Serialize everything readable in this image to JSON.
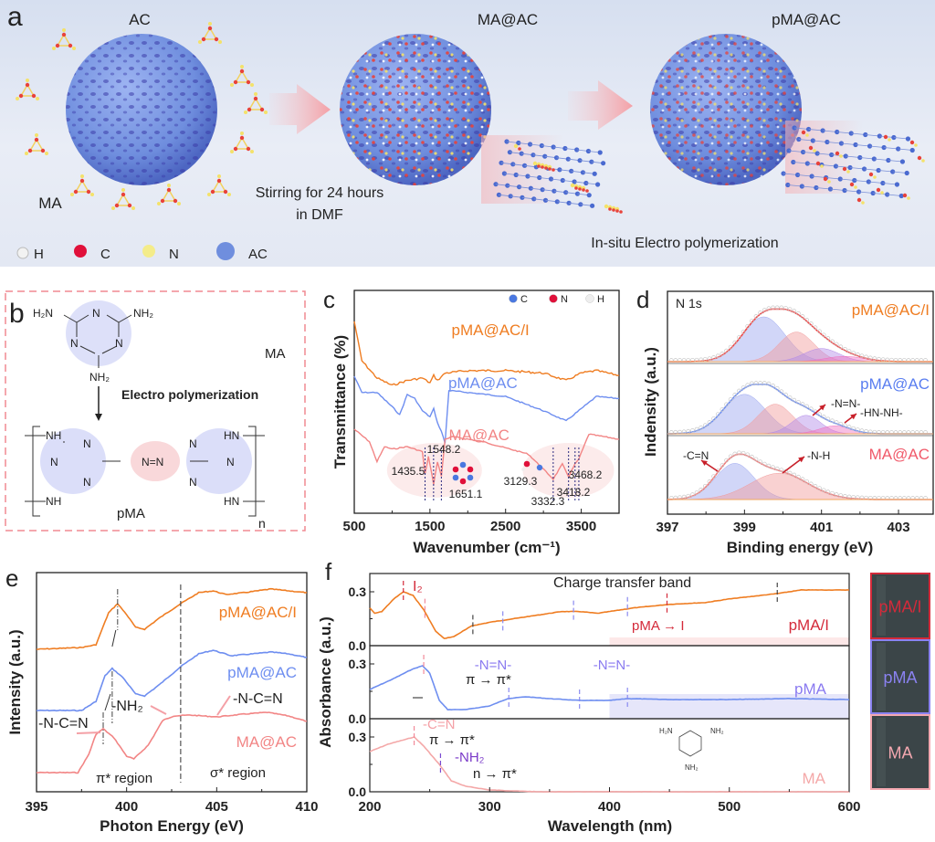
{
  "figure": {
    "panel_labels": [
      "a",
      "b",
      "c",
      "d",
      "e",
      "f"
    ]
  },
  "panel_a": {
    "titles": {
      "ac": "AC",
      "ma_ac": "MA@AC",
      "pma_ac": "pMA@AC",
      "ma": "MA"
    },
    "step1": [
      "Stirring for 24 hours",
      "in DMF"
    ],
    "step2": "In-situ  Electro polymerization",
    "legend": [
      {
        "label": "H",
        "color": "#f2f2f2"
      },
      {
        "label": "C",
        "color": "#e0103a"
      },
      {
        "label": "N",
        "color": "#f4ec8a"
      },
      {
        "label": "AC",
        "color": "#6f8ede"
      }
    ],
    "colors": {
      "sphere": "#6f8ede",
      "pore": "#3f3fb0",
      "arrow": "#f4a3a8"
    }
  },
  "panel_b": {
    "monomer_label": "MA",
    "polymer_label": "pMA",
    "reaction": "Electro polymerization",
    "atoms": {
      "h2n": "H₂N",
      "nh2": "NH₂",
      "n": "N",
      "nh": "NH",
      "hn": "HN",
      "azo": "N=N",
      "subscript_n": "n"
    },
    "border_color": "#f08a92"
  },
  "chart_data": [
    {
      "id": "c",
      "type": "line",
      "title": "",
      "xlabel": "Wavenumber (cm⁻¹)",
      "ylabel": "Transmittance (%)",
      "xlim": [
        500,
        4000
      ],
      "xticks": [
        500,
        1500,
        2500,
        3500
      ],
      "legend_atoms": [
        {
          "label": "C",
          "color": "#4a78e0"
        },
        {
          "label": "N",
          "color": "#e0103a"
        },
        {
          "label": "H",
          "color": "#eeeeee"
        }
      ],
      "series": [
        {
          "name": "pMA@AC/I",
          "color": "#ef7d22",
          "points": [
            [
              500,
              0.86
            ],
            [
              600,
              0.7
            ],
            [
              800,
              0.63
            ],
            [
              1000,
              0.6
            ],
            [
              1200,
              0.62
            ],
            [
              1400,
              0.63
            ],
            [
              1500,
              0.61
            ],
            [
              1550,
              0.64
            ],
            [
              1600,
              0.62
            ],
            [
              1700,
              0.65
            ],
            [
              2000,
              0.66
            ],
            [
              2500,
              0.66
            ],
            [
              3000,
              0.65
            ],
            [
              3300,
              0.62
            ],
            [
              3500,
              0.65
            ],
            [
              3700,
              0.66
            ],
            [
              4000,
              0.64
            ]
          ]
        },
        {
          "name": "pMA@AC",
          "color": "#6e8ef0",
          "points": [
            [
              500,
              0.53
            ],
            [
              600,
              0.45
            ],
            [
              800,
              0.45
            ],
            [
              1000,
              0.38
            ],
            [
              1100,
              0.34
            ],
            [
              1200,
              0.44
            ],
            [
              1300,
              0.42
            ],
            [
              1400,
              0.36
            ],
            [
              1500,
              0.33
            ],
            [
              1550,
              0.37
            ],
            [
              1600,
              0.3
            ],
            [
              1650,
              0.26
            ],
            [
              1700,
              0.2
            ],
            [
              1750,
              0.46
            ],
            [
              2000,
              0.45
            ],
            [
              2500,
              0.43
            ],
            [
              3000,
              0.36
            ],
            [
              3300,
              0.31
            ],
            [
              3500,
              0.37
            ],
            [
              3700,
              0.43
            ],
            [
              4000,
              0.42
            ]
          ]
        },
        {
          "name": "MA@AC",
          "color": "#f28585",
          "points": [
            [
              500,
              0.24
            ],
            [
              700,
              0.19
            ],
            [
              800,
              0.11
            ],
            [
              900,
              0.17
            ],
            [
              1000,
              0.16
            ],
            [
              1200,
              0.17
            ],
            [
              1400,
              0.15
            ],
            [
              1435.5,
              0.06
            ],
            [
              1480,
              0.13
            ],
            [
              1548.2,
              0.02
            ],
            [
              1600,
              0.11
            ],
            [
              1651.1,
              0.05
            ],
            [
              1700,
              0.2
            ],
            [
              1800,
              0.21
            ],
            [
              2200,
              0.19
            ],
            [
              2800,
              0.14
            ],
            [
              3129.3,
              0.04
            ],
            [
              3250,
              0.1
            ],
            [
              3332.3,
              0.05
            ],
            [
              3418.2,
              0.1
            ],
            [
              3468.2,
              0.12
            ],
            [
              3600,
              0.22
            ],
            [
              4000,
              0.2
            ]
          ]
        }
      ],
      "annotations": [
        "1435.5",
        "1548.2",
        "1651.1",
        "3129.3",
        "3332.3",
        "3418.2",
        "3468.2"
      ],
      "peak_positions": [
        1435.5,
        1548.2,
        1651.1,
        3129.3,
        3332.3,
        3418.2,
        3468.2
      ]
    },
    {
      "id": "d",
      "type": "line",
      "title": "N 1s",
      "xlabel": "Binding energy (eV)",
      "ylabel": "Indensity (a.u.)",
      "xlim": [
        397,
        403.9
      ],
      "xticks": [
        397,
        399,
        401,
        403
      ],
      "series": [
        {
          "name": "pMA@AC/I",
          "color": "#ef7d22",
          "envelope_color": "#f04848",
          "components": [
            {
              "center": 399.5,
              "height": 0.68,
              "width": 0.55,
              "color": "#9aa5f0"
            },
            {
              "center": 400.35,
              "height": 0.45,
              "width": 0.45,
              "color": "#f29a9a"
            },
            {
              "center": 401.0,
              "height": 0.2,
              "width": 0.45,
              "color": "#b28ae8"
            },
            {
              "center": 401.6,
              "height": 0.08,
              "width": 0.5,
              "color": "#f070c0"
            }
          ],
          "envelope_peak": 400.0,
          "envelope_height": 0.8
        },
        {
          "name": "pMA@AC",
          "color": "#5a7ef0",
          "envelope_color": "#6e8ef0",
          "components": [
            {
              "center": 399.0,
              "height": 0.6,
              "width": 0.55,
              "color": "#9aa5f0"
            },
            {
              "center": 399.8,
              "height": 0.45,
              "width": 0.45,
              "color": "#f29a9a"
            },
            {
              "center": 400.6,
              "height": 0.28,
              "width": 0.38,
              "color": "#b28ae8"
            },
            {
              "center": 401.35,
              "height": 0.12,
              "width": 0.4,
              "color": "#f070c0"
            }
          ],
          "envelope_peak": 399.5,
          "envelope_height": 0.75
        },
        {
          "name": "MA@AC",
          "color": "#f05a6a",
          "envelope_color": "#f07a7a",
          "components": [
            {
              "center": 398.75,
              "height": 0.55,
              "width": 0.5,
              "color": "#9aa5f0"
            },
            {
              "center": 399.9,
              "height": 0.4,
              "width": 0.75,
              "color": "#f29a9a"
            }
          ],
          "envelope_peak": 399.0,
          "envelope_height": 0.72
        }
      ],
      "annotations": [
        "-N=N-",
        "-HN-NH-",
        "-C=N",
        "-N-H"
      ]
    },
    {
      "id": "e",
      "type": "line",
      "title": "",
      "xlabel": "Photon Energy (eV)",
      "ylabel": "Intensity (a.u.)",
      "xlim": [
        395,
        410
      ],
      "xticks": [
        395,
        400,
        405,
        410
      ],
      "series": [
        {
          "name": "pMA@AC/I",
          "color": "#ef7d22",
          "points": [
            [
              395,
              0.0
            ],
            [
              397.5,
              0.02
            ],
            [
              398.3,
              0.05
            ],
            [
              399.0,
              0.4
            ],
            [
              399.5,
              0.5
            ],
            [
              400.0,
              0.38
            ],
            [
              400.5,
              0.24
            ],
            [
              401.0,
              0.22
            ],
            [
              401.8,
              0.34
            ],
            [
              403.0,
              0.5
            ],
            [
              404.0,
              0.62
            ],
            [
              404.8,
              0.64
            ],
            [
              405.5,
              0.6
            ],
            [
              406.5,
              0.62
            ],
            [
              408,
              0.66
            ],
            [
              409,
              0.64
            ],
            [
              410,
              0.62
            ]
          ]
        },
        {
          "name": "pMA@AC",
          "color": "#6e8ef0",
          "points": [
            [
              395,
              0.0
            ],
            [
              397.5,
              0.0
            ],
            [
              398.3,
              0.1
            ],
            [
              398.8,
              0.38
            ],
            [
              399.2,
              0.46
            ],
            [
              399.8,
              0.36
            ],
            [
              400.5,
              0.18
            ],
            [
              401.0,
              0.16
            ],
            [
              401.8,
              0.28
            ],
            [
              403.0,
              0.48
            ],
            [
              404.0,
              0.62
            ],
            [
              404.8,
              0.66
            ],
            [
              405.8,
              0.6
            ],
            [
              407,
              0.62
            ],
            [
              408,
              0.64
            ],
            [
              409,
              0.62
            ],
            [
              410,
              0.58
            ]
          ]
        },
        {
          "name": "MA@AC",
          "color": "#f28585",
          "points": [
            [
              395,
              0.0
            ],
            [
              397.3,
              0.0
            ],
            [
              397.9,
              0.2
            ],
            [
              398.3,
              0.42
            ],
            [
              398.7,
              0.48
            ],
            [
              399.3,
              0.38
            ],
            [
              400.0,
              0.18
            ],
            [
              400.4,
              0.15
            ],
            [
              401.2,
              0.3
            ],
            [
              402.0,
              0.57
            ],
            [
              402.6,
              0.62
            ],
            [
              403.5,
              0.63
            ],
            [
              405,
              0.61
            ],
            [
              406.5,
              0.64
            ],
            [
              407.8,
              0.66
            ],
            [
              409,
              0.62
            ],
            [
              410,
              0.56
            ]
          ]
        }
      ],
      "vlines": [
        403.0
      ],
      "peak_markers": [
        398.7,
        399.2,
        399.5
      ],
      "annotations": [
        "-N-C=N",
        "-NH₂",
        "-N-C=N",
        "π* region",
        "σ* region"
      ]
    },
    {
      "id": "f",
      "type": "line",
      "title": "",
      "xlabel": "Wavelength (nm)",
      "ylabel": "Absorbance (a.u.)",
      "xlim": [
        200,
        600
      ],
      "xticks": [
        200,
        300,
        400,
        500,
        600
      ],
      "ylim": [
        0.0,
        0.38
      ],
      "yticks": [
        0.0,
        0.3
      ],
      "subplots": [
        {
          "name": "pMA/I",
          "color": "#ef7d22",
          "label_color": "#d42a3a",
          "shade_from": 400,
          "shade_color": "#fde8e8",
          "points": [
            [
              200,
              0.21
            ],
            [
              204,
              0.18
            ],
            [
              210,
              0.19
            ],
            [
              220,
              0.26
            ],
            [
              228,
              0.3
            ],
            [
              236,
              0.28
            ],
            [
              245,
              0.2
            ],
            [
              255,
              0.08
            ],
            [
              262,
              0.04
            ],
            [
              270,
              0.05
            ],
            [
              285,
              0.11
            ],
            [
              300,
              0.13
            ],
            [
              330,
              0.16
            ],
            [
              360,
              0.19
            ],
            [
              375,
              0.19
            ],
            [
              390,
              0.18
            ],
            [
              420,
              0.21
            ],
            [
              450,
              0.23
            ],
            [
              480,
              0.24
            ],
            [
              500,
              0.26
            ],
            [
              540,
              0.29
            ],
            [
              560,
              0.31
            ],
            [
              600,
              0.31
            ]
          ],
          "markers": [
            {
              "x": 228,
              "color": "#d42a3a"
            },
            {
              "x": 246,
              "color": "#f28a9a"
            },
            {
              "x": 286,
              "color": "#444444"
            },
            {
              "x": 311,
              "color": "#8a8af0"
            },
            {
              "x": 370,
              "color": "#8a8af0"
            },
            {
              "x": 415,
              "color": "#8a8af0"
            },
            {
              "x": 448,
              "color": "#d42a3a"
            },
            {
              "x": 540,
              "color": "#444444"
            }
          ]
        },
        {
          "name": "pMA",
          "color": "#6e8ef0",
          "label_color": "#8a7af0",
          "shade_from": 400,
          "shade_color": "#e6e6fa",
          "points": [
            [
              200,
              0.16
            ],
            [
              220,
              0.22
            ],
            [
              235,
              0.27
            ],
            [
              244,
              0.29
            ],
            [
              250,
              0.25
            ],
            [
              258,
              0.1
            ],
            [
              265,
              0.05
            ],
            [
              280,
              0.05
            ],
            [
              300,
              0.07
            ],
            [
              315,
              0.11
            ],
            [
              330,
              0.12
            ],
            [
              350,
              0.11
            ],
            [
              375,
              0.1
            ],
            [
              400,
              0.1
            ],
            [
              415,
              0.11
            ],
            [
              450,
              0.105
            ],
            [
              500,
              0.105
            ],
            [
              550,
              0.11
            ],
            [
              600,
              0.105
            ]
          ],
          "markers": [
            {
              "x": 245,
              "color": "#f28a9a"
            },
            {
              "x": 316,
              "color": "#8a8af0"
            },
            {
              "x": 375,
              "color": "#8a8af0"
            },
            {
              "x": 415,
              "color": "#8a8af0"
            }
          ]
        },
        {
          "name": "MA",
          "color": "#f4a8a8",
          "label_color": "#f4a8a8",
          "points": [
            [
              200,
              0.22
            ],
            [
              215,
              0.26
            ],
            [
              237,
              0.3
            ],
            [
              245,
              0.25
            ],
            [
              258,
              0.15
            ],
            [
              268,
              0.06
            ],
            [
              280,
              0.03
            ],
            [
              300,
              0.01
            ],
            [
              340,
              0.0
            ],
            [
              600,
              0.0
            ]
          ],
          "markers": [
            {
              "x": 237,
              "color": "#f28a9a"
            },
            {
              "x": 259,
              "color": "#7a4ad0"
            }
          ]
        }
      ],
      "annotations": {
        "i2": "I₂",
        "charge_transfer": "Charge transfer band",
        "pma_to_i": "pMA → I",
        "azo1": "-N=N-",
        "azo2": "-N=N-",
        "pi_pi_1": "π → π*",
        "cn": "-C=N",
        "pi_pi_2": "π → π*",
        "nh2": "-NH₂",
        "n_pi": "n → π*"
      }
    }
  ],
  "photos": [
    {
      "label": "pMA/I",
      "border": "#d42a3a",
      "text_color": "#d42a3a"
    },
    {
      "label": "pMA",
      "border": "#8a82f0",
      "text_color": "#8a82f0"
    },
    {
      "label": "MA",
      "border": "#f4a8b0",
      "text_color": "#f4a8b0"
    }
  ]
}
